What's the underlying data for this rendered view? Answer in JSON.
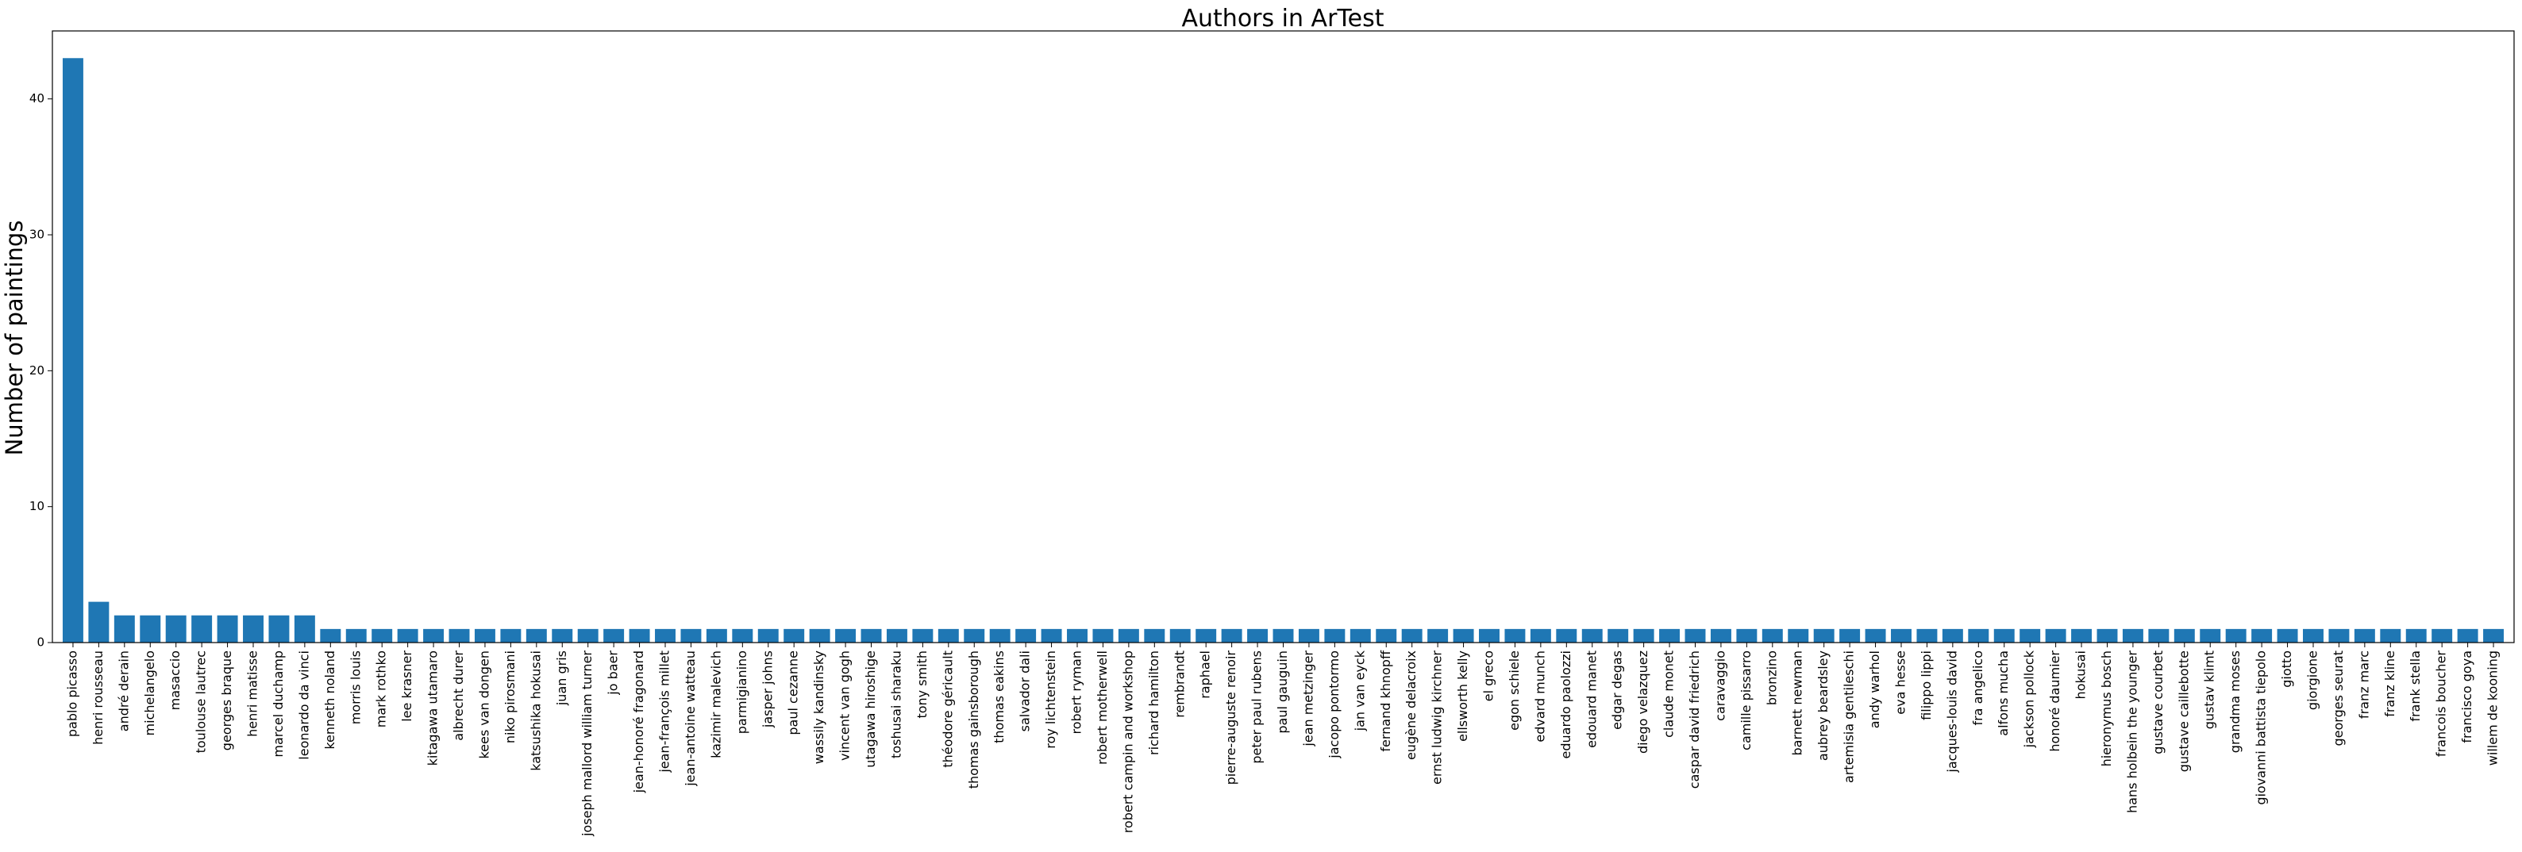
{
  "chart_data": {
    "type": "bar",
    "title": "Authors in ArTest",
    "xlabel": "",
    "ylabel": "Number of paintings",
    "ylim": [
      0,
      45
    ],
    "yticks": [
      0,
      10,
      20,
      30,
      40
    ],
    "grid": false,
    "bar_color": "#1f77b4",
    "categories": [
      "pablo picasso",
      "henri rousseau",
      "andré derain",
      "michelangelo",
      "masaccio",
      "toulouse lautrec",
      "georges braque",
      "henri matisse",
      "marcel duchamp",
      "leonardo da vinci",
      "kenneth noland",
      "morris louis",
      "mark rothko",
      "lee krasner",
      "kitagawa utamaro",
      "albrecht durer",
      "kees van dongen",
      "niko pirosmani",
      "katsushika hokusai",
      "juan gris",
      "joseph mallord william turner",
      "jo baer",
      "jean-honoré fragonard",
      "jean-françois millet",
      "jean-antoine watteau",
      "kazimir malevich",
      "parmigianino",
      "jasper johns",
      "paul cezanne",
      "wassily kandinsky",
      "vincent van gogh",
      "utagawa hiroshige",
      "toshusai sharaku",
      "tony smith",
      "théodore géricault",
      "thomas gainsborough",
      "thomas eakins",
      "salvador dali",
      "roy lichtenstein",
      "robert ryman",
      "robert motherwell",
      "robert campin and workshop",
      "richard hamilton",
      "rembrandt",
      "raphael",
      "pierre-auguste renoir",
      "peter paul rubens",
      "paul gauguin",
      "jean metzinger",
      "jacopo pontormo",
      "jan van eyck",
      "fernand khnopff",
      "eugène delacroix",
      "ernst ludwig kirchner",
      "ellsworth kelly",
      "el greco",
      "egon schiele",
      "edvard munch",
      "eduardo paolozzi",
      "edouard manet",
      "edgar degas",
      "diego velazquez",
      "claude monet",
      "caspar david friedrich",
      "caravaggio",
      "camille pissarro",
      "bronzino",
      "barnett newman",
      "aubrey beardsley",
      "artemisia gentileschi",
      "andy warhol",
      "eva hesse",
      "filippo lippi",
      "jacques-louis david",
      "fra angelico",
      "alfons mucha",
      "jackson pollock",
      "honoré daumier",
      "hokusai",
      "hieronymus bosch",
      "hans holbein the younger",
      "gustave courbet",
      "gustave caillebotte",
      "gustav klimt",
      "grandma moses",
      "giovanni battista tiepolo",
      "giotto",
      "giorgione",
      "georges seurat",
      "franz marc",
      "franz kline",
      "frank stella",
      "francois boucher",
      "francisco goya",
      "willem de kooning"
    ],
    "values": [
      43,
      3,
      2,
      2,
      2,
      2,
      2,
      2,
      2,
      2,
      1,
      1,
      1,
      1,
      1,
      1,
      1,
      1,
      1,
      1,
      1,
      1,
      1,
      1,
      1,
      1,
      1,
      1,
      1,
      1,
      1,
      1,
      1,
      1,
      1,
      1,
      1,
      1,
      1,
      1,
      1,
      1,
      1,
      1,
      1,
      1,
      1,
      1,
      1,
      1,
      1,
      1,
      1,
      1,
      1,
      1,
      1,
      1,
      1,
      1,
      1,
      1,
      1,
      1,
      1,
      1,
      1,
      1,
      1,
      1,
      1,
      1,
      1,
      1,
      1,
      1,
      1,
      1,
      1,
      1,
      1,
      1,
      1,
      1,
      1,
      1,
      1,
      1,
      1,
      1,
      1,
      1,
      1,
      1,
      1
    ]
  }
}
